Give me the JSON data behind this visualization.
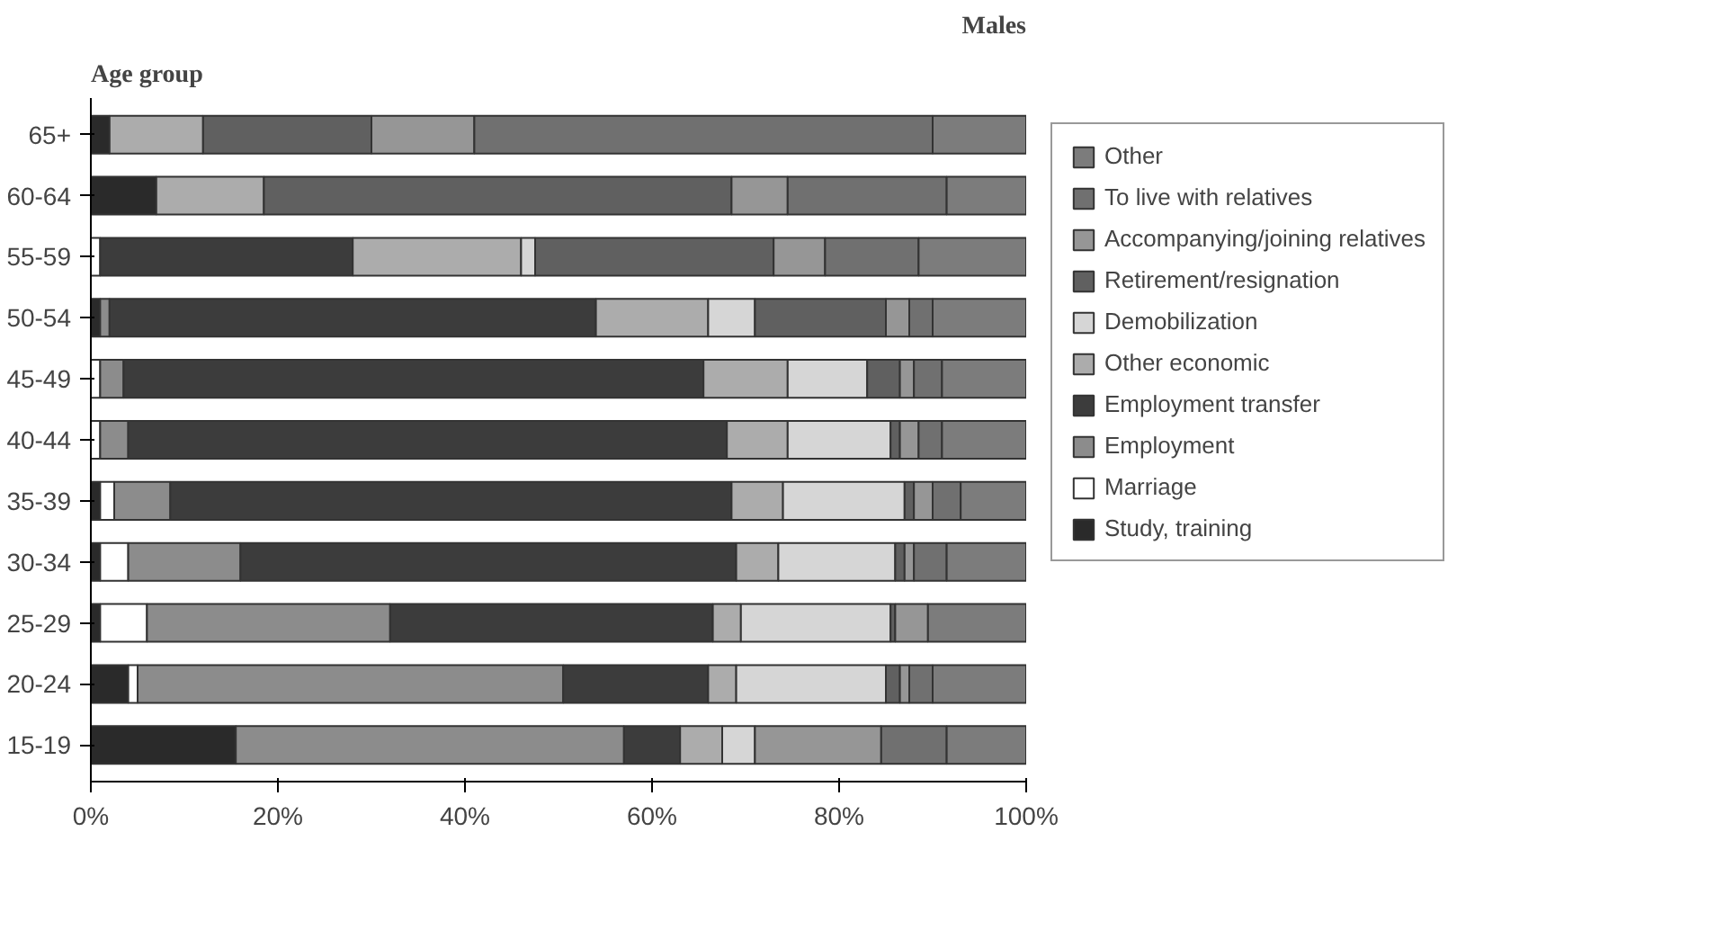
{
  "chart_data": {
    "type": "bar",
    "orientation": "horizontal",
    "stacked": true,
    "title": "Males",
    "ylabel": "Age group",
    "categories": [
      "65+",
      "60-64",
      "55-59",
      "50-54",
      "45-49",
      "40-44",
      "35-39",
      "30-34",
      "25-29",
      "20-24",
      "15-19"
    ],
    "series": [
      {
        "name": "Study, training",
        "color": "#2a2a2a",
        "values": [
          2,
          7,
          0,
          1,
          0,
          0,
          1,
          1,
          1,
          4,
          15.5
        ]
      },
      {
        "name": "Marriage",
        "color": "#ffffff",
        "values": [
          0,
          0,
          1,
          0,
          1,
          1,
          1.5,
          3,
          5,
          1,
          0
        ]
      },
      {
        "name": "Employment",
        "color": "#8c8c8c",
        "values": [
          0,
          0,
          0,
          1,
          2.5,
          3,
          6,
          12,
          26,
          45.5,
          41.5
        ]
      },
      {
        "name": "Employment transfer",
        "color": "#3c3c3c",
        "values": [
          0,
          0,
          27,
          52,
          62,
          64,
          60,
          53,
          34.5,
          15.5,
          6
        ]
      },
      {
        "name": "Other economic",
        "color": "#acacac",
        "values": [
          10,
          11.5,
          18,
          12,
          9,
          6.5,
          5.5,
          4.5,
          3,
          3,
          4.5
        ]
      },
      {
        "name": "Demobilization",
        "color": "#d6d6d6",
        "values": [
          0,
          0,
          1.5,
          5,
          8.5,
          11,
          13,
          12.5,
          16,
          16,
          3.5
        ]
      },
      {
        "name": "Retirement/resignation",
        "color": "#606060",
        "values": [
          18,
          50,
          25.5,
          14,
          3.5,
          1,
          1,
          1,
          0.5,
          1.5,
          0
        ]
      },
      {
        "name": "Accompanying/joining relatives",
        "color": "#969696",
        "values": [
          11,
          6,
          5.5,
          2.5,
          1.5,
          2,
          2,
          1,
          3.5,
          1,
          13.5
        ]
      },
      {
        "name": "To live with relatives",
        "color": "#707070",
        "values": [
          49,
          17,
          10,
          2.5,
          3,
          2.5,
          3,
          3.5,
          0,
          2.5,
          7
        ]
      },
      {
        "name": "Other",
        "color": "#7c7c7c",
        "values": [
          10,
          8.5,
          11.5,
          10,
          9,
          9,
          7,
          8.5,
          10.5,
          10,
          8.5
        ]
      }
    ],
    "xlim": [
      0,
      100
    ],
    "xticks": [
      {
        "value": 0,
        "label": "0%"
      },
      {
        "value": 20,
        "label": "20%"
      },
      {
        "value": 40,
        "label": "40%"
      },
      {
        "value": 60,
        "label": "60%"
      },
      {
        "value": 80,
        "label": "80%"
      },
      {
        "value": 100,
        "label": "100%"
      }
    ],
    "grid": false,
    "legend": "right"
  }
}
